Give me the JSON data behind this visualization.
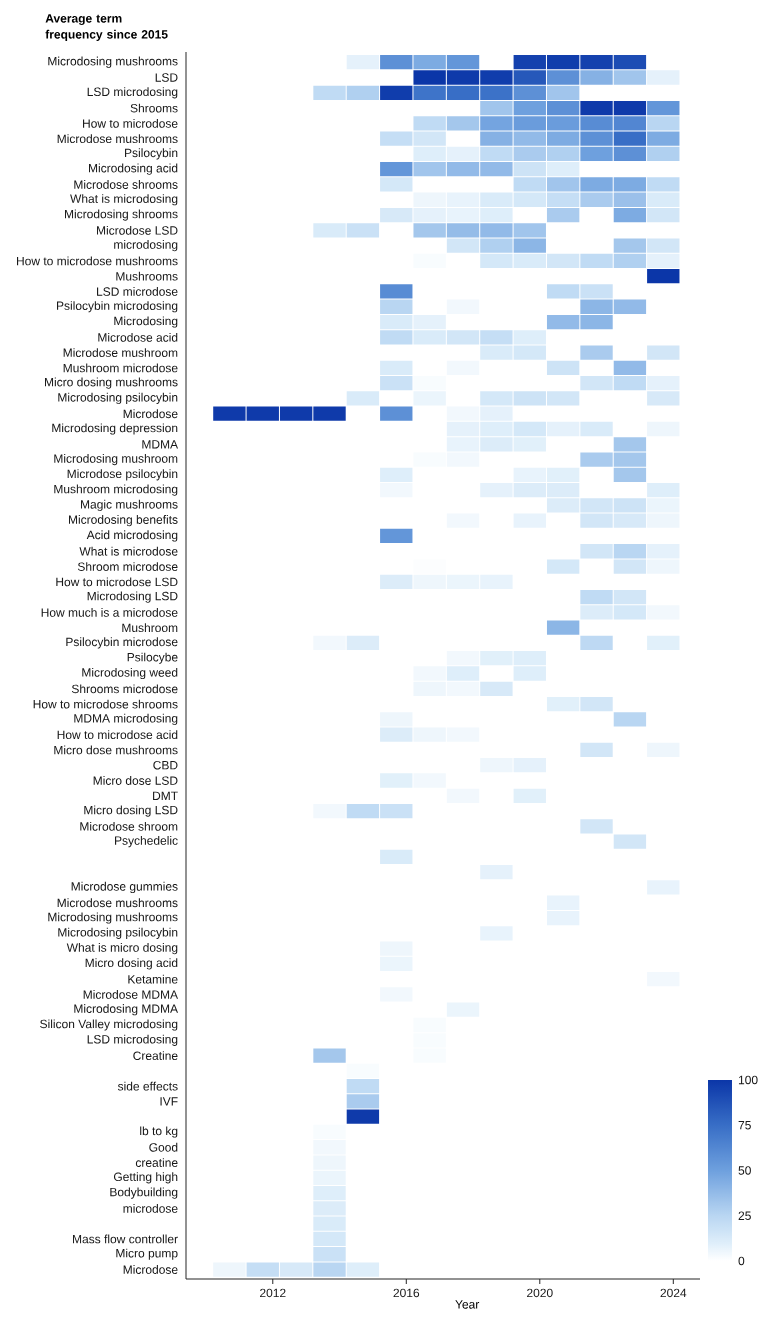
{
  "chart_data": {
    "type": "heatmap",
    "ylabel": "Average term frequency since 2015",
    "xlabel": "Year",
    "x": [
      2010.7,
      2011.7,
      2012.7,
      2013.7,
      2014.7,
      2015.7,
      2016.7,
      2017.7,
      2018.7,
      2019.7,
      2020.7,
      2021.7,
      2022.7,
      2023.7
    ],
    "xlim": [
      2009.4,
      2024.8
    ],
    "xticks": [
      2012,
      2016,
      2020,
      2024
    ],
    "clim": [
      0,
      100
    ],
    "cticks": [
      0,
      25,
      50,
      75,
      100
    ],
    "y_categories": [
      "Microdosing mushrooms",
      "LSD",
      "LSD microdosing",
      "Shrooms",
      "How to microdose",
      "Microdose mushrooms",
      "Psilocybin",
      "Microdosing acid",
      "Microdose shrooms",
      "What is microdosing",
      "Microdosing shrooms",
      "Microdose LSD",
      "microdosing",
      "How to microdose mushrooms",
      "Mushrooms",
      "LSD microdose",
      "Psilocybin microdosing",
      "Microdosing",
      "Microdose acid",
      "Microdose mushroom",
      "Mushroom microdose",
      "Micro dosing mushrooms",
      "Microdosing psilocybin",
      "Microdose",
      "Microdosing depression",
      "MDMA",
      "Microdosing mushroom",
      "Microdose psilocybin",
      "Mushroom microdosing",
      "Magic mushrooms",
      "Microdosing benefits",
      "Acid microdosing",
      "What is microdose",
      "Shroom microdose",
      "How to microdose LSD",
      "Microdosing LSD",
      "How much is a microdose",
      "Mushroom",
      "Psilocybin microdose",
      "Psilocybe",
      "Microdosing weed",
      "Shrooms microdose",
      "How to microdose shrooms",
      "MDMA microdosing",
      "How to microdose acid",
      "Micro dose mushrooms",
      "CBD",
      "Micro dose LSD",
      "DMT",
      "Micro dosing LSD",
      "Microdose shroom",
      "Psychedelic",
      null,
      null,
      "Microdose gummies",
      "Microdose mushrooms",
      "Microdosing mushrooms",
      "Microdosing psilocybin",
      "What is micro dosing",
      "Micro dosing acid",
      "Ketamine",
      "Microdose MDMA",
      "Microdosing MDMA",
      "Silicon Valley microdosing",
      "LSD microdosing",
      "Creatine",
      null,
      "side effects",
      "IVF",
      null,
      "lb to kg",
      "Good",
      "creatine",
      "Getting high",
      "Bodybuilding",
      "microdose",
      null,
      "Mass flow controller",
      "Micro pump",
      "Microdose"
    ],
    "cells": [
      [
        null,
        null,
        null,
        null,
        8,
        58,
        45,
        55,
        null,
        95,
        97,
        95,
        90,
        null
      ],
      [
        null,
        null,
        null,
        null,
        null,
        null,
        100,
        98,
        97,
        85,
        58,
        42,
        33,
        8
      ],
      [
        null,
        null,
        null,
        22,
        28,
        97,
        72,
        75,
        73,
        58,
        33,
        null,
        null,
        null
      ],
      [
        null,
        null,
        null,
        null,
        null,
        null,
        null,
        null,
        33,
        50,
        58,
        98,
        98,
        55
      ],
      [
        null,
        null,
        null,
        null,
        null,
        null,
        22,
        32,
        48,
        52,
        52,
        60,
        63,
        25
      ],
      [
        null,
        null,
        null,
        null,
        null,
        20,
        15,
        null,
        42,
        38,
        45,
        58,
        75,
        45
      ],
      [
        null,
        null,
        null,
        null,
        null,
        null,
        10,
        8,
        22,
        30,
        28,
        50,
        58,
        28
      ],
      [
        null,
        null,
        null,
        null,
        null,
        55,
        33,
        38,
        38,
        17,
        10,
        null,
        null,
        null
      ],
      [
        null,
        null,
        null,
        null,
        null,
        14,
        null,
        null,
        null,
        22,
        33,
        45,
        45,
        22
      ],
      [
        null,
        null,
        null,
        null,
        null,
        null,
        5,
        7,
        12,
        14,
        20,
        30,
        35,
        12
      ],
      [
        null,
        null,
        null,
        null,
        null,
        13,
        8,
        7,
        10,
        null,
        30,
        null,
        45,
        15
      ],
      [
        null,
        null,
        null,
        12,
        18,
        null,
        32,
        37,
        38,
        33,
        null,
        null,
        null,
        null
      ],
      [
        null,
        null,
        null,
        null,
        null,
        null,
        null,
        15,
        28,
        40,
        null,
        null,
        32,
        15
      ],
      [
        null,
        null,
        null,
        null,
        null,
        null,
        2,
        null,
        14,
        12,
        15,
        22,
        28,
        8
      ],
      [
        null,
        null,
        null,
        null,
        null,
        null,
        null,
        null,
        null,
        null,
        null,
        null,
        null,
        100
      ],
      [
        null,
        null,
        null,
        null,
        null,
        60,
        null,
        null,
        null,
        null,
        22,
        18,
        null,
        null
      ],
      [
        null,
        null,
        null,
        null,
        null,
        25,
        null,
        4,
        null,
        null,
        null,
        40,
        38,
        null
      ],
      [
        null,
        null,
        null,
        null,
        null,
        12,
        8,
        null,
        null,
        null,
        38,
        40,
        null,
        null
      ],
      [
        null,
        null,
        null,
        null,
        null,
        22,
        12,
        15,
        20,
        10,
        null,
        null,
        null,
        null
      ],
      [
        null,
        null,
        null,
        null,
        null,
        null,
        null,
        null,
        12,
        14,
        null,
        30,
        null,
        15
      ],
      [
        null,
        null,
        null,
        null,
        null,
        12,
        null,
        4,
        null,
        null,
        17,
        null,
        38,
        null
      ],
      [
        null,
        null,
        null,
        null,
        null,
        18,
        2,
        null,
        null,
        null,
        null,
        15,
        22,
        8
      ],
      [
        null,
        null,
        null,
        null,
        12,
        null,
        6,
        null,
        14,
        17,
        15,
        null,
        null,
        13
      ],
      [
        98,
        98,
        98,
        98,
        null,
        58,
        null,
        4,
        8,
        null,
        null,
        null,
        null,
        null
      ],
      [
        null,
        null,
        null,
        null,
        null,
        null,
        null,
        8,
        10,
        14,
        8,
        12,
        null,
        5
      ],
      [
        null,
        null,
        null,
        null,
        null,
        null,
        null,
        7,
        11,
        9,
        null,
        null,
        32,
        null
      ],
      [
        null,
        null,
        null,
        null,
        null,
        null,
        2,
        4,
        null,
        null,
        null,
        30,
        32,
        null
      ],
      [
        null,
        null,
        null,
        null,
        null,
        10,
        null,
        null,
        null,
        7,
        9,
        null,
        32,
        null
      ],
      [
        null,
        null,
        null,
        null,
        null,
        4,
        null,
        null,
        8,
        11,
        11,
        null,
        null,
        10
      ],
      [
        null,
        null,
        null,
        null,
        null,
        null,
        null,
        null,
        null,
        null,
        11,
        15,
        17,
        6
      ],
      [
        null,
        null,
        null,
        null,
        null,
        null,
        null,
        4,
        null,
        7,
        null,
        15,
        13,
        5
      ],
      [
        null,
        null,
        null,
        null,
        null,
        55,
        null,
        null,
        null,
        null,
        null,
        null,
        null,
        null
      ],
      [
        null,
        null,
        null,
        null,
        null,
        null,
        null,
        null,
        null,
        null,
        null,
        15,
        25,
        8
      ],
      [
        null,
        null,
        null,
        null,
        null,
        null,
        1,
        null,
        null,
        null,
        14,
        null,
        15,
        5
      ],
      [
        null,
        null,
        null,
        null,
        null,
        11,
        5,
        6,
        7,
        null,
        null,
        null,
        null,
        null
      ],
      [
        null,
        null,
        null,
        null,
        null,
        null,
        null,
        null,
        null,
        null,
        null,
        22,
        15,
        null
      ],
      [
        null,
        null,
        null,
        null,
        null,
        null,
        null,
        null,
        null,
        null,
        null,
        11,
        14,
        4
      ],
      [
        null,
        null,
        null,
        null,
        null,
        null,
        null,
        null,
        null,
        null,
        40,
        null,
        null,
        null
      ],
      [
        null,
        null,
        null,
        4,
        11,
        null,
        null,
        null,
        null,
        null,
        null,
        23,
        null,
        9
      ],
      [
        null,
        null,
        null,
        null,
        null,
        null,
        null,
        4,
        9,
        10,
        null,
        null,
        null,
        null
      ],
      [
        null,
        null,
        null,
        null,
        null,
        null,
        4,
        10,
        null,
        10,
        null,
        null,
        null,
        null
      ],
      [
        null,
        null,
        null,
        null,
        null,
        null,
        5,
        4,
        13,
        null,
        null,
        null,
        null,
        null
      ],
      [
        null,
        null,
        null,
        null,
        null,
        null,
        null,
        null,
        null,
        null,
        9,
        15,
        null,
        null
      ],
      [
        null,
        null,
        null,
        null,
        null,
        5,
        null,
        null,
        null,
        null,
        null,
        null,
        25,
        null
      ],
      [
        null,
        null,
        null,
        null,
        null,
        11,
        5,
        4,
        null,
        null,
        null,
        null,
        null,
        null
      ],
      [
        null,
        null,
        null,
        null,
        null,
        null,
        null,
        null,
        null,
        null,
        null,
        15,
        null,
        5
      ],
      [
        null,
        null,
        null,
        null,
        null,
        null,
        null,
        null,
        5,
        8,
        null,
        null,
        null,
        null
      ],
      [
        null,
        null,
        null,
        null,
        null,
        9,
        4,
        null,
        null,
        null,
        null,
        null,
        null,
        null
      ],
      [
        null,
        null,
        null,
        null,
        null,
        null,
        null,
        4,
        null,
        9,
        null,
        null,
        null,
        null
      ],
      [
        null,
        null,
        null,
        4,
        22,
        18,
        null,
        null,
        null,
        null,
        null,
        null,
        null,
        null
      ],
      [
        null,
        null,
        null,
        null,
        null,
        null,
        null,
        null,
        null,
        null,
        null,
        15,
        null,
        null
      ],
      [
        null,
        null,
        null,
        null,
        null,
        null,
        null,
        null,
        null,
        null,
        null,
        null,
        15,
        null
      ],
      [
        null,
        null,
        null,
        null,
        null,
        12,
        null,
        null,
        null,
        null,
        null,
        null,
        null,
        null
      ],
      [
        null,
        null,
        null,
        null,
        null,
        null,
        null,
        null,
        8,
        null,
        null,
        null,
        null,
        null
      ],
      [
        null,
        null,
        null,
        null,
        null,
        null,
        null,
        null,
        null,
        null,
        null,
        null,
        null,
        7
      ],
      [
        null,
        null,
        null,
        null,
        null,
        null,
        null,
        null,
        null,
        null,
        7,
        null,
        null,
        null
      ],
      [
        null,
        null,
        null,
        null,
        null,
        null,
        null,
        null,
        null,
        null,
        7,
        null,
        null,
        null
      ],
      [
        null,
        null,
        null,
        null,
        null,
        null,
        null,
        null,
        7,
        null,
        null,
        null,
        null,
        null
      ],
      [
        null,
        null,
        null,
        null,
        null,
        5,
        null,
        null,
        null,
        null,
        null,
        null,
        null,
        null
      ],
      [
        null,
        null,
        null,
        null,
        null,
        6,
        null,
        null,
        null,
        null,
        null,
        null,
        null,
        null
      ],
      [
        null,
        null,
        null,
        null,
        null,
        null,
        null,
        null,
        null,
        null,
        null,
        null,
        null,
        4
      ],
      [
        null,
        null,
        null,
        null,
        null,
        4,
        null,
        null,
        null,
        null,
        null,
        null,
        null,
        null
      ],
      [
        null,
        null,
        null,
        null,
        null,
        null,
        null,
        6,
        null,
        null,
        null,
        null,
        null,
        null
      ],
      [
        null,
        null,
        null,
        null,
        null,
        null,
        2,
        null,
        null,
        null,
        null,
        null,
        null,
        null
      ],
      [
        null,
        null,
        null,
        null,
        null,
        null,
        2,
        null,
        null,
        null,
        null,
        null,
        null,
        null
      ],
      [
        null,
        null,
        null,
        32,
        null,
        null,
        2,
        null,
        null,
        null,
        null,
        null,
        null,
        null
      ],
      [
        null,
        null,
        null,
        null,
        2,
        null,
        null,
        null,
        null,
        null,
        null,
        null,
        null,
        null
      ],
      [
        null,
        null,
        null,
        null,
        22,
        null,
        null,
        null,
        null,
        null,
        null,
        null,
        null,
        null
      ],
      [
        null,
        null,
        null,
        null,
        30,
        null,
        null,
        null,
        null,
        null,
        null,
        null,
        null,
        null
      ],
      [
        null,
        null,
        null,
        null,
        98,
        null,
        null,
        null,
        null,
        null,
        null,
        null,
        null,
        null
      ],
      [
        null,
        null,
        null,
        2,
        null,
        null,
        null,
        null,
        null,
        null,
        null,
        null,
        null,
        null
      ],
      [
        null,
        null,
        null,
        4,
        null,
        null,
        null,
        null,
        null,
        null,
        null,
        null,
        null,
        null
      ],
      [
        null,
        null,
        null,
        5,
        null,
        null,
        null,
        null,
        null,
        null,
        null,
        null,
        null,
        null
      ],
      [
        null,
        null,
        null,
        6,
        null,
        null,
        null,
        null,
        null,
        null,
        null,
        null,
        null,
        null
      ],
      [
        null,
        null,
        null,
        10,
        null,
        null,
        null,
        null,
        null,
        null,
        null,
        null,
        null,
        null
      ],
      [
        null,
        null,
        null,
        11,
        null,
        null,
        null,
        null,
        null,
        null,
        null,
        null,
        null,
        null
      ],
      [
        null,
        null,
        null,
        12,
        null,
        null,
        null,
        null,
        null,
        null,
        null,
        null,
        null,
        null
      ],
      [
        null,
        null,
        null,
        14,
        null,
        null,
        null,
        null,
        null,
        null,
        null,
        null,
        null,
        null
      ],
      [
        null,
        null,
        null,
        18,
        null,
        null,
        null,
        null,
        null,
        null,
        null,
        null,
        null,
        null
      ],
      [
        5,
        20,
        13,
        25,
        10,
        null,
        null,
        null,
        null,
        null,
        null,
        null,
        null,
        null
      ]
    ]
  }
}
